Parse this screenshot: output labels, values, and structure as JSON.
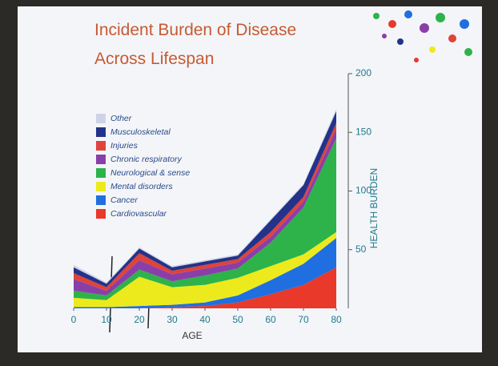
{
  "chart_data": {
    "type": "stacked_area",
    "title": "Incident Burden of Disease Across Lifespan",
    "x_label": "AGE",
    "y_label": "HEALTH BURDEN",
    "x": [
      0,
      10,
      20,
      30,
      40,
      50,
      60,
      70,
      80
    ],
    "xlim": [
      0,
      80
    ],
    "xticks": [
      0,
      10,
      20,
      30,
      40,
      50,
      60,
      70,
      80
    ],
    "ylim": [
      0,
      200
    ],
    "yticks": [
      50,
      100,
      150,
      200
    ],
    "series": [
      {
        "name": "Cardiovascular",
        "color": "#e8392b",
        "values": [
          0,
          0,
          0,
          1,
          2,
          5,
          12,
          20,
          35
        ]
      },
      {
        "name": "Cancer",
        "color": "#1f6fe0",
        "values": [
          1,
          1,
          2,
          2,
          3,
          6,
          12,
          18,
          25
        ]
      },
      {
        "name": "Mental disorders",
        "color": "#ecea1c",
        "values": [
          8,
          6,
          25,
          15,
          15,
          15,
          12,
          8,
          5
        ]
      },
      {
        "name": "Neurological & sense",
        "color": "#2db34a",
        "values": [
          6,
          4,
          6,
          5,
          8,
          8,
          20,
          40,
          80
        ]
      },
      {
        "name": "Chronic respiratory",
        "color": "#8a3fa8",
        "values": [
          10,
          4,
          8,
          6,
          6,
          5,
          5,
          5,
          8
        ]
      },
      {
        "name": "Injuries",
        "color": "#e0433a",
        "values": [
          5,
          3,
          6,
          3,
          3,
          3,
          4,
          4,
          5
        ]
      },
      {
        "name": "Musculoskeletal",
        "color": "#23338a",
        "values": [
          5,
          3,
          4,
          3,
          3,
          3,
          10,
          10,
          10
        ]
      },
      {
        "name": "Other",
        "color": "#cfd3e6",
        "values": [
          2,
          1,
          1,
          1,
          1,
          1,
          1,
          1,
          2
        ]
      }
    ]
  }
}
